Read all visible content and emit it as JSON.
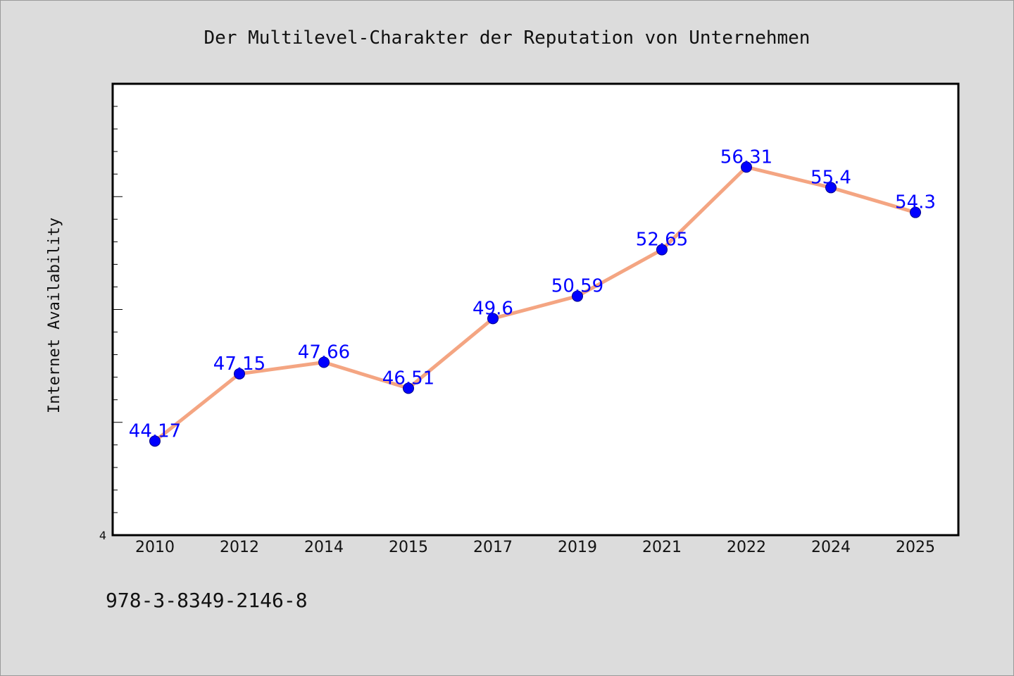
{
  "chart_data": {
    "type": "line",
    "title": "Der Multilevel-Charakter der Reputation von Unternehmen",
    "xlabel": "",
    "ylabel": "Internet Availability",
    "categories": [
      "2010",
      "2012",
      "2014",
      "2015",
      "2017",
      "2019",
      "2021",
      "2022",
      "2024",
      "2025"
    ],
    "series": [
      {
        "values": [
          44.17,
          47.15,
          47.66,
          46.51,
          49.6,
          50.59,
          52.65,
          56.31,
          55.4,
          54.3
        ]
      }
    ],
    "data_labels": [
      "44.17",
      "47.15",
      "47.66",
      "46.51",
      "49.6",
      "50.59",
      "52.65",
      "56.31",
      "55.4",
      "54.3"
    ],
    "ylim": [
      40,
      60
    ],
    "y_tick_labels": [
      "4"
    ],
    "grid": false,
    "legend": "none",
    "colors": {
      "line": "#f4a582",
      "marker": "#0000ff",
      "label": "#0000ff",
      "plot_background": "#ffffff",
      "page_background": "#dcdcdc"
    }
  },
  "footer": {
    "isbn": "978-3-8349-2146-8"
  }
}
